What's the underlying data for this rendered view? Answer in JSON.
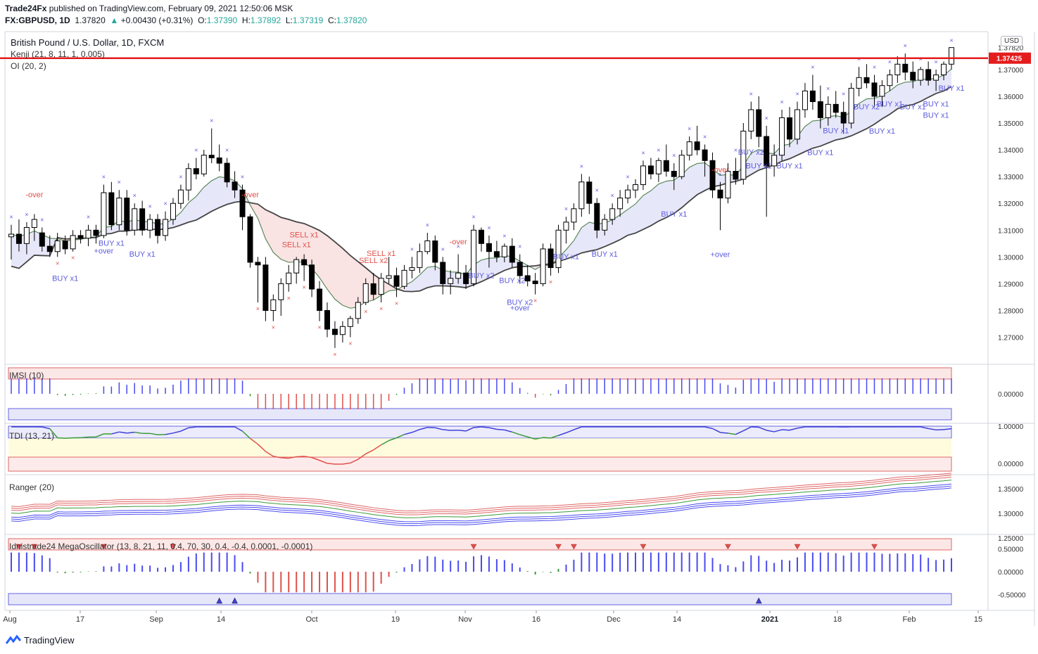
{
  "header": {
    "publisher": "Trade24Fx",
    "published_text": "published on TradingView.com, February 09, 2021 12:50:06 MSK",
    "symbol": "FX:GBPUSD, 1D",
    "last": "1.37820",
    "change": "+0.00430 (+0.31%)",
    "o_label": "O:",
    "o": "1.37390",
    "h_label": "H:",
    "h": "1.37892",
    "l_label": "L:",
    "l": "1.37319",
    "c_label": "C:",
    "c": "1.37820"
  },
  "legend": {
    "main_title": "British Pound / U.S. Dollar, 1D, FXCM",
    "kenji": "Kenji (21, 8, 11, 1, 0.005)",
    "oi": "OI (20, 2)",
    "imsi": "IMSI (10)",
    "tdi": "TDI (13, 21)",
    "ranger": "Ranger (20)",
    "mega": "Idnistrade24 MegaOscillator (13, 8, 21, 11, 0.4, 70, 30, 0.4, -0.4, 0.0001, -0.0001)"
  },
  "price_axis": {
    "currency": "USD",
    "current_price": "1.37820",
    "hline_price": "1.37425",
    "ticks": [
      "1.37000",
      "1.36000",
      "1.35000",
      "1.34000",
      "1.33000",
      "1.32000",
      "1.31000",
      "1.30000",
      "1.29000",
      "1.28000",
      "1.27000"
    ]
  },
  "pane_axes": {
    "imsi": [
      "0.00000"
    ],
    "tdi": [
      "1.00000",
      "0.00000"
    ],
    "ranger": [
      "1.35000",
      "1.30000",
      "1.25000"
    ],
    "mega": [
      "0.50000",
      "0.00000",
      "-0.50000"
    ]
  },
  "time_axis": [
    "Aug",
    "17",
    "Sep",
    "14",
    "Oct",
    "19",
    "Nov",
    "16",
    "Dec",
    "14",
    "2021",
    "18",
    "Feb",
    "15"
  ],
  "signals": [
    {
      "text": "+over",
      "type": "buy"
    },
    {
      "text": "-over",
      "type": "sell"
    },
    {
      "text": "BUY x1",
      "type": "buy"
    },
    {
      "text": "BUY x1",
      "type": "buy"
    },
    {
      "text": "BUY x1",
      "type": "buy"
    },
    {
      "text": "-over",
      "type": "sell"
    },
    {
      "text": "SELL x1",
      "type": "sell"
    },
    {
      "text": "SELL x1",
      "type": "sell"
    },
    {
      "text": "SELL x2",
      "type": "sell"
    },
    {
      "text": "SELL x1",
      "type": "sell"
    },
    {
      "text": "-over",
      "type": "sell"
    },
    {
      "text": "BUY x2",
      "type": "buy"
    },
    {
      "text": "BUY x2",
      "type": "buy"
    },
    {
      "text": "BUY x2",
      "type": "buy"
    },
    {
      "text": "+over",
      "type": "buy"
    },
    {
      "text": "BUY x1",
      "type": "buy"
    },
    {
      "text": "BUY x1",
      "type": "buy"
    },
    {
      "text": "BUY x1",
      "type": "buy"
    },
    {
      "text": "-over",
      "type": "sell"
    },
    {
      "text": "BUY x1",
      "type": "buy"
    },
    {
      "text": "+over",
      "type": "buy"
    },
    {
      "text": "BUY x2",
      "type": "buy"
    },
    {
      "text": "BUY x1",
      "type": "buy"
    },
    {
      "text": "BUY x1",
      "type": "buy"
    },
    {
      "text": "BUY x1",
      "type": "buy"
    },
    {
      "text": "BUY x2",
      "type": "buy"
    },
    {
      "text": "BUY x1",
      "type": "buy"
    },
    {
      "text": "BUY x1",
      "type": "buy"
    },
    {
      "text": "BUY x1",
      "type": "buy"
    },
    {
      "text": "BUY x1",
      "type": "buy"
    },
    {
      "text": "BUY x1",
      "type": "buy"
    },
    {
      "text": "BUY x1",
      "type": "buy"
    }
  ],
  "chart_data": {
    "type": "candlestick",
    "title": "British Pound / U.S. Dollar, 1D, FXCM",
    "ylim": [
      1.262,
      1.381
    ],
    "x_range": [
      "Aug 2020",
      "Feb 15 2021"
    ],
    "candles_ohlc_approx": [
      [
        1.3075,
        1.312,
        1.299,
        1.3085
      ],
      [
        1.3085,
        1.314,
        1.302,
        1.305
      ],
      [
        1.305,
        1.313,
        1.301,
        1.311
      ],
      [
        1.311,
        1.316,
        1.306,
        1.314
      ],
      [
        1.309,
        1.311,
        1.302,
        1.304
      ],
      [
        1.304,
        1.308,
        1.3,
        1.302
      ],
      [
        1.302,
        1.309,
        1.3,
        1.306
      ],
      [
        1.306,
        1.308,
        1.301,
        1.303
      ],
      [
        1.303,
        1.31,
        1.302,
        1.308
      ],
      [
        1.308,
        1.31,
        1.305,
        1.307
      ],
      [
        1.307,
        1.312,
        1.304,
        1.31
      ],
      [
        1.31,
        1.312,
        1.305,
        1.308
      ],
      [
        1.308,
        1.327,
        1.307,
        1.324
      ],
      [
        1.324,
        1.328,
        1.31,
        1.312
      ],
      [
        1.312,
        1.325,
        1.31,
        1.322
      ],
      [
        1.322,
        1.325,
        1.308,
        1.31
      ],
      [
        1.31,
        1.32,
        1.308,
        1.318
      ],
      [
        1.318,
        1.321,
        1.308,
        1.31
      ],
      [
        1.31,
        1.316,
        1.307,
        1.314
      ],
      [
        1.314,
        1.316,
        1.305,
        1.308
      ],
      [
        1.308,
        1.317,
        1.306,
        1.314
      ],
      [
        1.314,
        1.322,
        1.312,
        1.32
      ],
      [
        1.32,
        1.327,
        1.318,
        1.325
      ],
      [
        1.325,
        1.335,
        1.321,
        1.333
      ],
      [
        1.333,
        1.337,
        1.329,
        1.331
      ],
      [
        1.331,
        1.34,
        1.33,
        1.338
      ],
      [
        1.338,
        1.348,
        1.335,
        1.337
      ],
      [
        1.337,
        1.342,
        1.332,
        1.335
      ],
      [
        1.335,
        1.337,
        1.326,
        1.328
      ],
      [
        1.328,
        1.332,
        1.322,
        1.325
      ],
      [
        1.325,
        1.327,
        1.31,
        1.315
      ],
      [
        1.315,
        1.316,
        1.296,
        1.298
      ],
      [
        1.298,
        1.3,
        1.283,
        1.297
      ],
      [
        1.297,
        1.3,
        1.276,
        1.28
      ],
      [
        1.28,
        1.286,
        1.276,
        1.284
      ],
      [
        1.284,
        1.292,
        1.278,
        1.29
      ],
      [
        1.29,
        1.297,
        1.287,
        1.294
      ],
      [
        1.294,
        1.3,
        1.29,
        1.299
      ],
      [
        1.299,
        1.301,
        1.291,
        1.297
      ],
      [
        1.297,
        1.299,
        1.285,
        1.288
      ],
      [
        1.288,
        1.291,
        1.276,
        1.28
      ],
      [
        1.28,
        1.283,
        1.27,
        1.273
      ],
      [
        1.273,
        1.276,
        1.266,
        1.271
      ],
      [
        1.271,
        1.276,
        1.268,
        1.274
      ],
      [
        1.274,
        1.278,
        1.27,
        1.277
      ],
      [
        1.277,
        1.285,
        1.275,
        1.283
      ],
      [
        1.283,
        1.292,
        1.282,
        1.29
      ],
      [
        1.29,
        1.294,
        1.284,
        1.286
      ],
      [
        1.286,
        1.294,
        1.283,
        1.292
      ],
      [
        1.292,
        1.3,
        1.29,
        1.293
      ],
      [
        1.293,
        1.296,
        1.285,
        1.289
      ],
      [
        1.289,
        1.297,
        1.288,
        1.295
      ],
      [
        1.295,
        1.3,
        1.292,
        1.296
      ],
      [
        1.296,
        1.305,
        1.294,
        1.302
      ],
      [
        1.302,
        1.309,
        1.301,
        1.306
      ],
      [
        1.306,
        1.308,
        1.295,
        1.298
      ],
      [
        1.298,
        1.3,
        1.286,
        1.29
      ],
      [
        1.29,
        1.295,
        1.286,
        1.292
      ],
      [
        1.292,
        1.301,
        1.29,
        1.294
      ],
      [
        1.294,
        1.297,
        1.288,
        1.29
      ],
      [
        1.29,
        1.312,
        1.289,
        1.31
      ],
      [
        1.31,
        1.311,
        1.302,
        1.305
      ],
      [
        1.305,
        1.308,
        1.296,
        1.302
      ],
      [
        1.302,
        1.306,
        1.298,
        1.3
      ],
      [
        1.3,
        1.305,
        1.298,
        1.304
      ],
      [
        1.304,
        1.307,
        1.296,
        1.298
      ],
      [
        1.298,
        1.301,
        1.29,
        1.293
      ],
      [
        1.293,
        1.297,
        1.289,
        1.291
      ],
      [
        1.291,
        1.294,
        1.286,
        1.29
      ],
      [
        1.29,
        1.305,
        1.289,
        1.303
      ],
      [
        1.303,
        1.305,
        1.293,
        1.296
      ],
      [
        1.296,
        1.312,
        1.294,
        1.31
      ],
      [
        1.31,
        1.315,
        1.305,
        1.313
      ],
      [
        1.313,
        1.32,
        1.31,
        1.318
      ],
      [
        1.318,
        1.331,
        1.315,
        1.328
      ],
      [
        1.328,
        1.33,
        1.316,
        1.32
      ],
      [
        1.32,
        1.322,
        1.307,
        1.31
      ],
      [
        1.31,
        1.316,
        1.308,
        1.314
      ],
      [
        1.314,
        1.32,
        1.312,
        1.318
      ],
      [
        1.318,
        1.325,
        1.315,
        1.322
      ],
      [
        1.322,
        1.327,
        1.32,
        1.325
      ],
      [
        1.325,
        1.329,
        1.322,
        1.327
      ],
      [
        1.327,
        1.336,
        1.325,
        1.334
      ],
      [
        1.334,
        1.337,
        1.329,
        1.331
      ],
      [
        1.331,
        1.337,
        1.328,
        1.336
      ],
      [
        1.336,
        1.342,
        1.33,
        1.332
      ],
      [
        1.332,
        1.335,
        1.325,
        1.33
      ],
      [
        1.33,
        1.34,
        1.329,
        1.338
      ],
      [
        1.338,
        1.345,
        1.336,
        1.343
      ],
      [
        1.343,
        1.349,
        1.338,
        1.34
      ],
      [
        1.34,
        1.342,
        1.33,
        1.336
      ],
      [
        1.336,
        1.339,
        1.322,
        1.325
      ],
      [
        1.325,
        1.328,
        1.31,
        1.322
      ],
      [
        1.322,
        1.335,
        1.32,
        1.332
      ],
      [
        1.332,
        1.337,
        1.327,
        1.329
      ],
      [
        1.329,
        1.35,
        1.327,
        1.347
      ],
      [
        1.347,
        1.358,
        1.344,
        1.355
      ],
      [
        1.355,
        1.36,
        1.341,
        1.345
      ],
      [
        1.345,
        1.349,
        1.315,
        1.334
      ],
      [
        1.334,
        1.342,
        1.33,
        1.338
      ],
      [
        1.338,
        1.355,
        1.336,
        1.352
      ],
      [
        1.352,
        1.356,
        1.341,
        1.344
      ],
      [
        1.344,
        1.358,
        1.342,
        1.355
      ],
      [
        1.355,
        1.365,
        1.352,
        1.362
      ],
      [
        1.362,
        1.368,
        1.355,
        1.358
      ],
      [
        1.358,
        1.364,
        1.348,
        1.352
      ],
      [
        1.352,
        1.36,
        1.349,
        1.357
      ],
      [
        1.357,
        1.362,
        1.352,
        1.354
      ],
      [
        1.354,
        1.358,
        1.346,
        1.35
      ],
      [
        1.35,
        1.365,
        1.348,
        1.363
      ],
      [
        1.363,
        1.371,
        1.36,
        1.367
      ],
      [
        1.367,
        1.372,
        1.363,
        1.365
      ],
      [
        1.365,
        1.368,
        1.356,
        1.36
      ],
      [
        1.36,
        1.366,
        1.356,
        1.364
      ],
      [
        1.364,
        1.37,
        1.362,
        1.368
      ],
      [
        1.368,
        1.375,
        1.365,
        1.372
      ],
      [
        1.372,
        1.376,
        1.366,
        1.369
      ],
      [
        1.369,
        1.373,
        1.363,
        1.366
      ],
      [
        1.366,
        1.371,
        1.364,
        1.37
      ],
      [
        1.37,
        1.373,
        1.364,
        1.366
      ],
      [
        1.366,
        1.37,
        1.362,
        1.368
      ],
      [
        1.368,
        1.373,
        1.366,
        1.372
      ],
      [
        1.372,
        1.378,
        1.37,
        1.3782
      ]
    ]
  }
}
